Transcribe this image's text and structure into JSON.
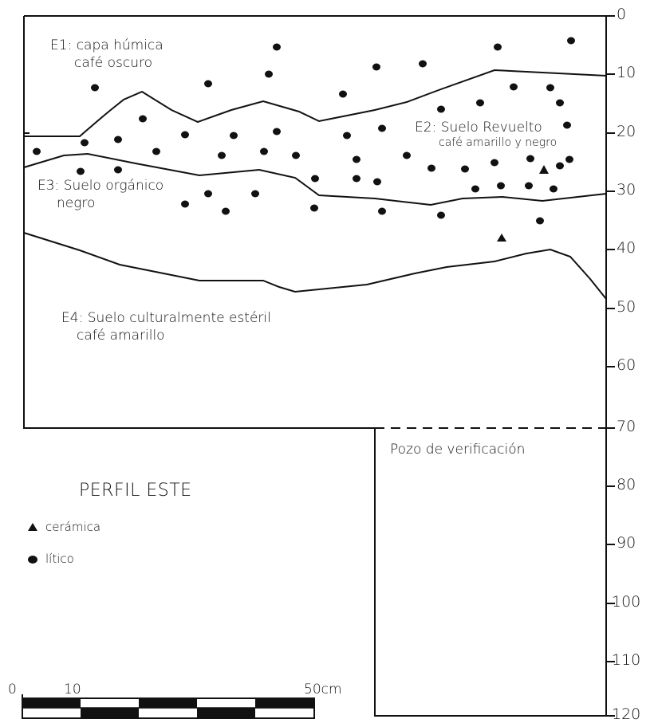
{
  "title": "PERFIL ESTE",
  "strata": {
    "e1": {
      "line1": "E1: capa húmica",
      "line2": "café oscuro"
    },
    "e2": {
      "line1": "E2: Suelo Revuelto",
      "line2": "café amarillo y negro"
    },
    "e3": {
      "line1": "E3: Suelo orgánico",
      "line2": "negro"
    },
    "e4": {
      "line1": "E4: Suelo culturalmente estéril",
      "line2": "café amarillo"
    }
  },
  "verification_pit": "Pozo de verificación",
  "depth_axis": {
    "ticks": [
      "0",
      "10",
      "20",
      "30",
      "40",
      "50",
      "60",
      "70",
      "80",
      "90",
      "100",
      "110",
      "120"
    ]
  },
  "legend": {
    "ceramica": {
      "label": "cerámica",
      "symbol": "triangle"
    },
    "litico": {
      "label": "lítico",
      "symbol": "dot"
    }
  },
  "scale_bar": {
    "labels": [
      "0",
      "10",
      "50cm"
    ]
  },
  "colors": {
    "ink": "#111111",
    "paper": "#ffffff"
  }
}
